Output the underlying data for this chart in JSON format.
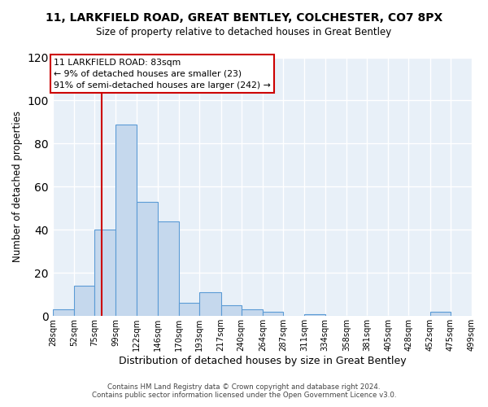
{
  "title": "11, LARKFIELD ROAD, GREAT BENTLEY, COLCHESTER, CO7 8PX",
  "subtitle": "Size of property relative to detached houses in Great Bentley",
  "xlabel": "Distribution of detached houses by size in Great Bentley",
  "ylabel": "Number of detached properties",
  "bin_edges": [
    28,
    52,
    75,
    99,
    122,
    146,
    170,
    193,
    217,
    240,
    264,
    287,
    311,
    334,
    358,
    381,
    405,
    428,
    452,
    475,
    499
  ],
  "bar_heights": [
    3,
    14,
    40,
    89,
    53,
    44,
    6,
    11,
    5,
    3,
    2,
    0,
    1,
    0,
    0,
    0,
    0,
    0,
    2,
    0
  ],
  "bar_color": "#c5d8ed",
  "bar_edgecolor": "#5b9bd5",
  "property_line_x": 83,
  "property_line_color": "#cc0000",
  "annotation_line1": "11 LARKFIELD ROAD: 83sqm",
  "annotation_line2": "← 9% of detached houses are smaller (23)",
  "annotation_line3": "91% of semi-detached houses are larger (242) →",
  "annotation_box_edgecolor": "#cc0000",
  "annotation_box_facecolor": "#ffffff",
  "ylim": [
    0,
    120
  ],
  "yticks": [
    0,
    20,
    40,
    60,
    80,
    100,
    120
  ],
  "tick_labels": [
    "28sqm",
    "52sqm",
    "75sqm",
    "99sqm",
    "122sqm",
    "146sqm",
    "170sqm",
    "193sqm",
    "217sqm",
    "240sqm",
    "264sqm",
    "287sqm",
    "311sqm",
    "334sqm",
    "358sqm",
    "381sqm",
    "405sqm",
    "428sqm",
    "452sqm",
    "475sqm",
    "499sqm"
  ],
  "footer1": "Contains HM Land Registry data © Crown copyright and database right 2024.",
  "footer2": "Contains public sector information licensed under the Open Government Licence v3.0.",
  "background_color": "#ffffff",
  "plot_bg_color": "#e8f0f8",
  "grid_color": "#ffffff"
}
